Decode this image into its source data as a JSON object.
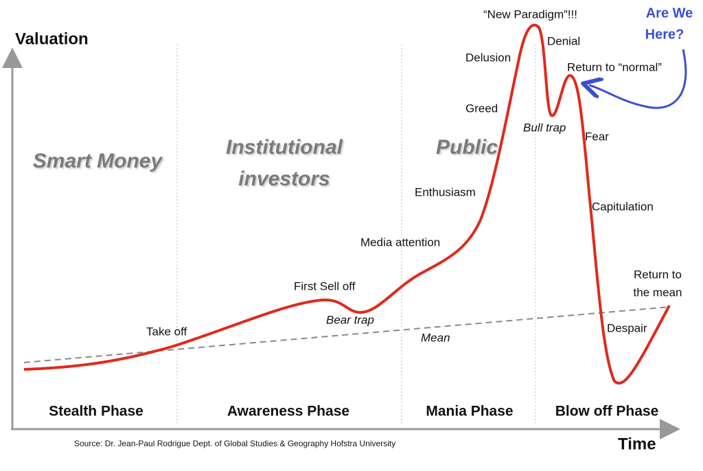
{
  "axes": {
    "y_label": "Valuation",
    "x_label": "Time"
  },
  "groups": [
    [
      "Smart Money"
    ],
    [
      "Institutional",
      "investors"
    ],
    [
      "Public"
    ]
  ],
  "phases": [
    "Stealth Phase",
    "Awareness Phase",
    "Mania Phase",
    "Blow off Phase"
  ],
  "stages": [
    "Take off",
    "First Sell off",
    "Bear trap",
    "Media attention",
    "Enthusiasm",
    "Greed",
    "Delusion",
    "“New Paradigm”!!!",
    "Denial",
    "Return to “normal”",
    "Bull trap",
    "Fear",
    "Capitulation",
    "Despair",
    [
      "Return to",
      "the mean"
    ]
  ],
  "mean_label": "Mean",
  "annotation": [
    "Are We",
    "Here?"
  ],
  "source": "Source: Dr. Jean-Paul Rodrigue Dept. of Global Studies & Geography Hofstra University"
}
